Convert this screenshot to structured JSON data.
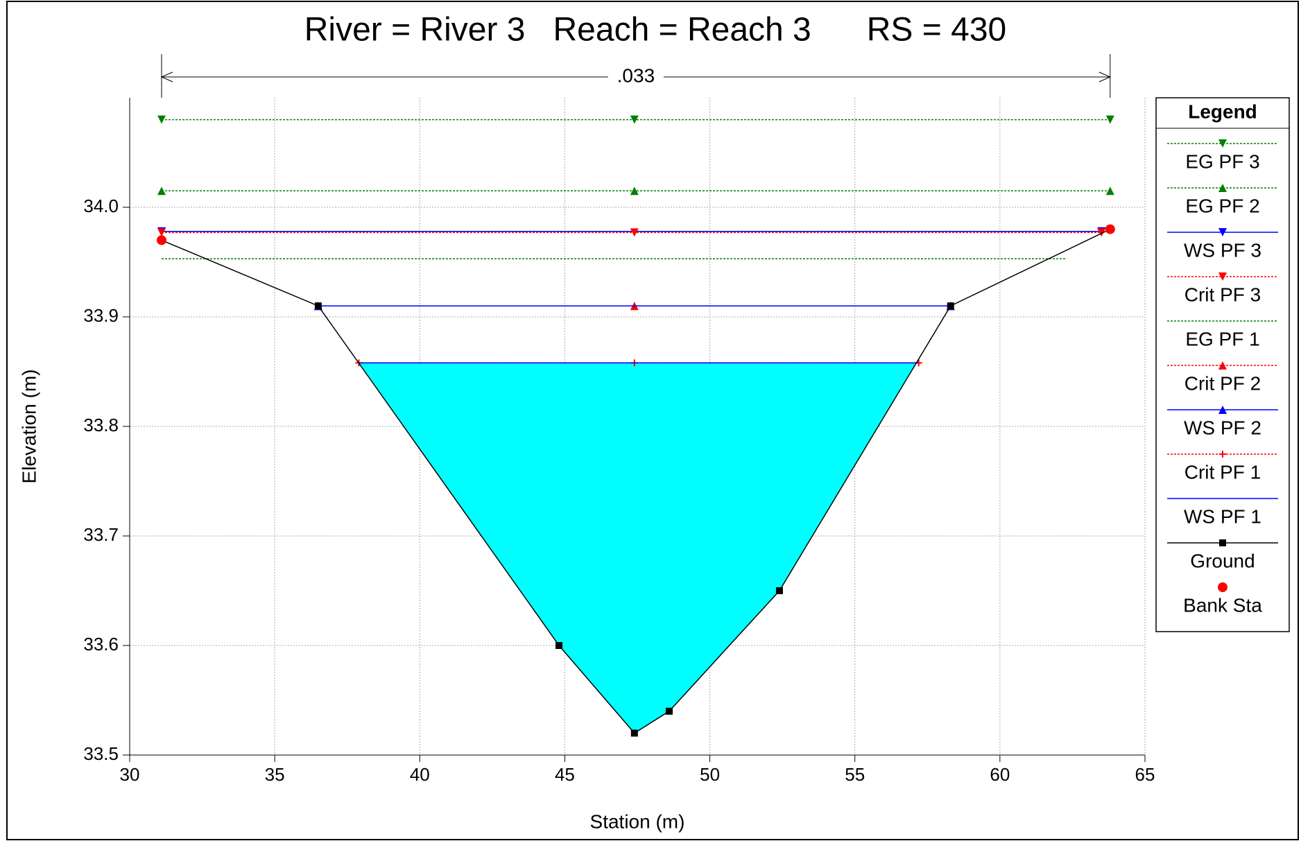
{
  "chart_data": {
    "type": "line",
    "title": "River = River 3   Reach = Reach 3      RS = 430",
    "xlabel": "Station (m)",
    "ylabel": "Elevation (m)",
    "annotation": ".033",
    "legend_title": "Legend",
    "legend": "right",
    "xlim": [
      30,
      65
    ],
    "xticks": [
      30,
      35,
      40,
      45,
      50,
      55,
      60,
      65
    ],
    "ylim": [
      33.5,
      34.1
    ],
    "yticks": [
      33.5,
      33.6,
      33.7,
      33.8,
      33.9,
      {
        "value": 34,
        "label": "34.0"
      }
    ],
    "grid": true,
    "fill_color": "#00ffff",
    "series": [
      {
        "name": "EG PF 3",
        "color": "#008000",
        "dash": true,
        "marker": "tri-down",
        "x": [
          31.1,
          47.4,
          63.8
        ],
        "values": [
          34.08,
          34.08,
          34.08
        ]
      },
      {
        "name": "EG PF 2",
        "color": "#008000",
        "dash": true,
        "marker": "tri-up",
        "x": [
          31.1,
          47.4,
          63.8
        ],
        "values": [
          34.015,
          34.015,
          34.015
        ]
      },
      {
        "name": "WS PF 3",
        "color": "#0000ff",
        "dash": false,
        "marker": "tri-down",
        "x": [
          31.1,
          63.5
        ],
        "values": [
          33.978,
          33.978
        ]
      },
      {
        "name": "Crit PF 3",
        "color": "#ff0000",
        "dash": true,
        "marker": "tri-down",
        "x": [
          31.1,
          47.4,
          63.5
        ],
        "values": [
          33.977,
          33.977,
          33.977
        ]
      },
      {
        "name": "EG PF 1",
        "color": "#008000",
        "dash": true,
        "marker": "none",
        "x": [
          31.1,
          62.3
        ],
        "values": [
          33.953,
          33.953
        ]
      },
      {
        "name": "Crit PF 2",
        "color": "#ff0000",
        "dash": true,
        "marker": "tri-up",
        "x": [
          36.5,
          47.4,
          58.3
        ],
        "values": [
          33.91,
          33.91,
          33.91
        ]
      },
      {
        "name": "WS PF 2",
        "color": "#0000ff",
        "dash": false,
        "marker": "tri-up",
        "x": [
          36.5,
          58.3
        ],
        "values": [
          33.91,
          33.91
        ]
      },
      {
        "name": "Crit PF 1",
        "color": "#ff0000",
        "dash": true,
        "marker": "plus",
        "x": [
          37.9,
          47.4,
          57.2
        ],
        "values": [
          33.858,
          33.858,
          33.858
        ]
      },
      {
        "name": "WS PF 1",
        "color": "#0000ff",
        "dash": false,
        "marker": "none",
        "x": [
          37.9,
          57.2
        ],
        "values": [
          33.858,
          33.858
        ]
      },
      {
        "name": "Ground",
        "color": "#000000",
        "dash": false,
        "marker": "square",
        "x": [
          31.1,
          36.5,
          44.8,
          47.4,
          48.6,
          52.4,
          58.3,
          63.8
        ],
        "values": [
          33.97,
          33.91,
          33.6,
          33.52,
          33.54,
          33.65,
          33.91,
          33.98
        ]
      },
      {
        "name": "Bank Sta",
        "color": "#ff0000",
        "dash": false,
        "line": false,
        "marker": "circle",
        "x": [
          31.1,
          63.8
        ],
        "values": [
          33.97,
          33.98
        ]
      }
    ]
  }
}
